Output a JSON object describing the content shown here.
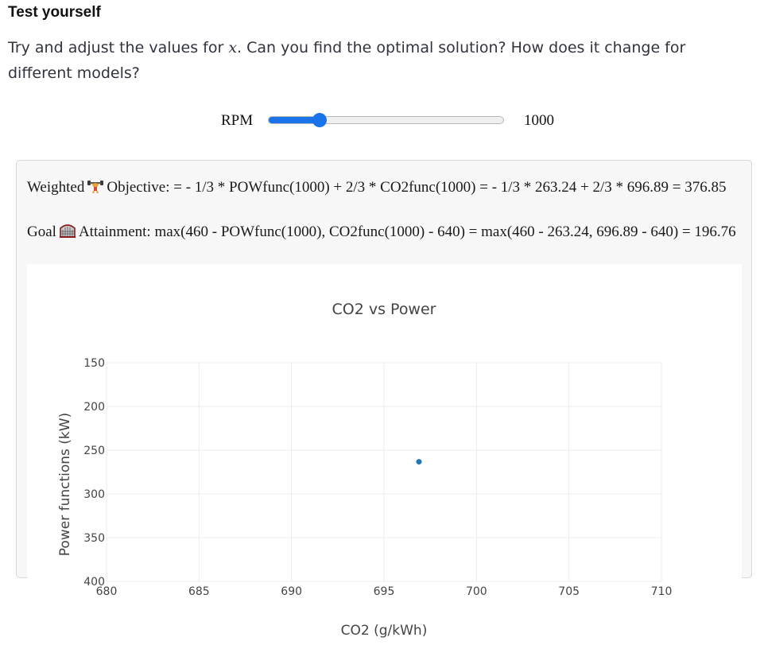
{
  "heading": "Test yourself",
  "intro": {
    "before": "Try and adjust the values for ",
    "var": "x",
    "after": ". Can you find the optimal solution? How does it change for different models?"
  },
  "slider": {
    "label": "RPM",
    "value_text": "1000",
    "fraction": 0.22,
    "color": "#1a73e8"
  },
  "weighted": {
    "word": "Weighted",
    "icon": "weightlifter-icon",
    "text": "Objective: = - 1/3 * POWfunc(1000) + 2/3 * CO2func(1000) = - 1/3 * 263.24 + 2/3 * 696.89 = 376.85"
  },
  "goal": {
    "word": "Goal",
    "icon": "goal-net-icon",
    "text": "Attainment: max(460 - POWfunc(1000), CO2func(1000) - 640) = max(460 - 263.24, 696.89 - 640) = 196.76"
  },
  "chart_data": {
    "type": "scatter",
    "title": "CO2 vs Power",
    "xlabel": "CO2 (g/kWh)",
    "ylabel": "Power functions (kW)",
    "xlim": [
      680,
      710
    ],
    "ylim": [
      150,
      400
    ],
    "y_reversed": true,
    "xticks": [
      680,
      685,
      690,
      695,
      700,
      705,
      710
    ],
    "yticks": [
      150,
      200,
      250,
      300,
      350,
      400
    ],
    "grid": true,
    "points": [
      {
        "x": 696.89,
        "y": 263.24
      }
    ],
    "point_color": "#1f77b4"
  }
}
